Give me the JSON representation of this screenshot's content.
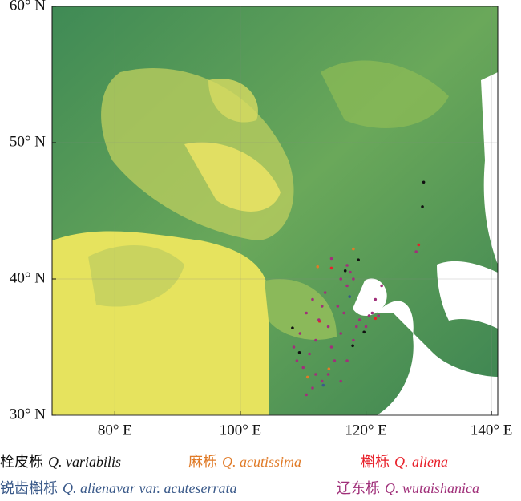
{
  "chart_data": {
    "type": "scatter",
    "xlim": [
      70,
      141
    ],
    "ylim": [
      30,
      60
    ],
    "xticks": [
      {
        "value": 80,
        "label": "80° E"
      },
      {
        "value": 100,
        "label": "100° E"
      },
      {
        "value": 120,
        "label": "120° E"
      },
      {
        "value": 140,
        "label": "140° E"
      }
    ],
    "yticks": [
      {
        "value": 30,
        "label": "30° N"
      },
      {
        "value": 40,
        "label": "40° N"
      },
      {
        "value": 50,
        "label": "50° N"
      },
      {
        "value": 60,
        "label": "60° N"
      }
    ],
    "grid": true,
    "series": [
      {
        "label": "栓皮栎",
        "name": "Q. variabilis",
        "color": "#111111",
        "x": [
          129.2,
          129.0,
          118.8,
          116.7,
          119.7,
          117.9,
          108.3,
          109.4
        ],
        "values": [
          47.1,
          45.3,
          41.4,
          40.6,
          36.1,
          35.1,
          36.4,
          34.6
        ]
      },
      {
        "label": "麻栎",
        "name": "Q. acutissima",
        "color": "#e07b28",
        "x": [
          118.0,
          112.3,
          110.7,
          114.1
        ],
        "values": [
          42.2,
          40.9,
          32.8,
          33.4
        ]
      },
      {
        "label": "槲栎",
        "name": "Q. aliena",
        "color": "#e8202a",
        "x": [
          128.4,
          114.5,
          112.6,
          121.5
        ],
        "values": [
          42.5,
          40.8,
          36.9,
          37.1
        ]
      },
      {
        "label": "锐齿槲栎",
        "name": "Q. alienavar var. acuteserrata",
        "color": "#3b5a8a",
        "x": [
          113.2,
          117.4
        ],
        "values": [
          32.2,
          38.7
        ]
      },
      {
        "label": "辽东栎",
        "name": "Q. wutaishanica",
        "color": "#a0307a",
        "x": [
          108.5,
          109.0,
          110.0,
          111.0,
          112.0,
          112.5,
          113.0,
          113.5,
          114.0,
          114.5,
          115.0,
          116.0,
          116.5,
          117.0,
          117.5,
          118.0,
          118.5,
          119.0,
          120.0,
          120.5,
          121.0,
          122.0,
          112.0,
          113.0,
          110.5,
          111.5,
          114.0,
          116.0,
          109.5,
          110.5,
          111.5,
          115.5,
          116.0,
          114.5,
          117.0,
          121.5,
          122.5,
          128.0,
          117.0,
          118.0
        ],
        "values": [
          35.0,
          34.0,
          33.5,
          34.5,
          35.5,
          37.0,
          38.0,
          39.0,
          36.5,
          35.0,
          34.0,
          36.0,
          37.5,
          39.5,
          40.5,
          40.0,
          36.5,
          37.0,
          36.5,
          37.3,
          37.5,
          37.3,
          33.0,
          32.5,
          31.5,
          32.0,
          33.0,
          32.5,
          36.0,
          37.5,
          38.5,
          38.0,
          40.0,
          41.5,
          41.0,
          38.5,
          39.5,
          42.0,
          34.0,
          35.5
        ]
      }
    ]
  }
}
